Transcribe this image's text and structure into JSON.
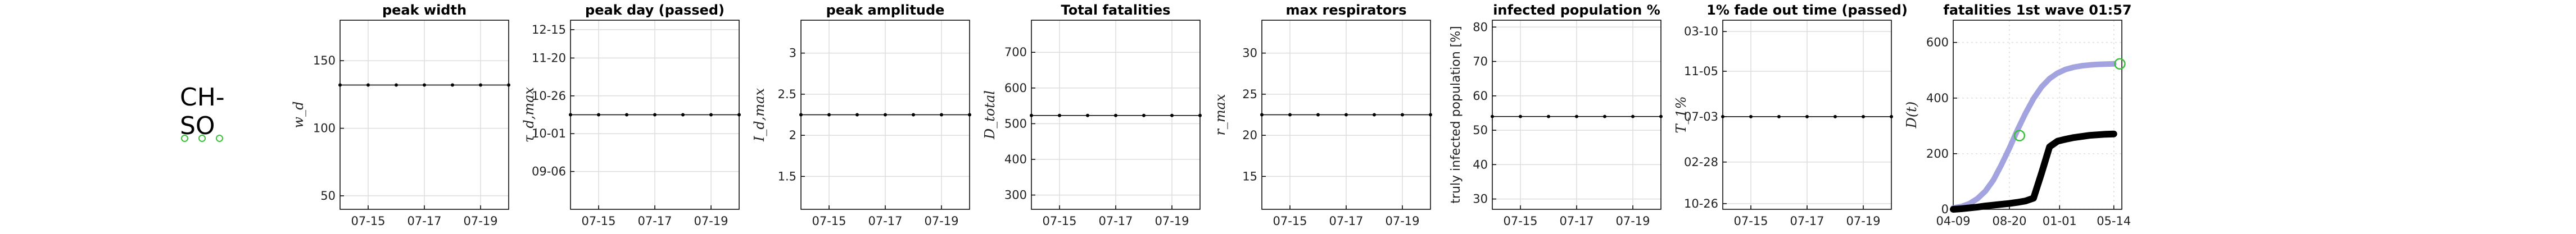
{
  "region": {
    "name": "CH-SO",
    "markers": [
      "marker-1",
      "marker-2",
      "marker-3"
    ],
    "marker_color": "#3cc03c"
  },
  "chart_data": [
    {
      "type": "line",
      "title": "peak width",
      "ylabel": "w_d",
      "x": [
        "07-14",
        "07-15",
        "07-16",
        "07-17",
        "07-18",
        "07-19",
        "07-20"
      ],
      "xticks": [
        "07-15",
        "07-17",
        "07-19"
      ],
      "ylim": [
        40,
        180
      ],
      "yticks": [
        50,
        100,
        150
      ],
      "series": [
        {
          "values": [
            132,
            132,
            132,
            132,
            132,
            132,
            132
          ]
        }
      ]
    },
    {
      "type": "line",
      "title": "peak day (passed)",
      "ylabel": "τ_d,max",
      "x": [
        "07-14",
        "07-15",
        "07-16",
        "07-17",
        "07-18",
        "07-19",
        "07-20"
      ],
      "xticks": [
        "07-15",
        "07-17",
        "07-19"
      ],
      "ylim": [
        0,
        100
      ],
      "yticks": [
        20,
        40,
        60,
        80,
        95
      ],
      "ytick_labels": [
        "09-06",
        "10-01",
        "10-26",
        "11-20",
        "12-15"
      ],
      "series": [
        {
          "values": [
            50,
            50,
            50,
            50,
            50,
            50,
            50
          ]
        }
      ]
    },
    {
      "type": "line",
      "title": "peak amplitude",
      "ylabel": "I_d,max",
      "x": [
        "07-14",
        "07-15",
        "07-16",
        "07-17",
        "07-18",
        "07-19",
        "07-20"
      ],
      "xticks": [
        "07-15",
        "07-17",
        "07-19"
      ],
      "ylim": [
        1.1,
        3.4
      ],
      "yticks": [
        1.5,
        2,
        2.5,
        3
      ],
      "series": [
        {
          "values": [
            2.25,
            2.25,
            2.25,
            2.25,
            2.25,
            2.25,
            2.25
          ]
        }
      ]
    },
    {
      "type": "line",
      "title": "Total fatalities",
      "ylabel": "D_total",
      "x": [
        "07-14",
        "07-15",
        "07-16",
        "07-17",
        "07-18",
        "07-19",
        "07-20"
      ],
      "xticks": [
        "07-15",
        "07-17",
        "07-19"
      ],
      "ylim": [
        260,
        790
      ],
      "yticks": [
        300,
        400,
        500,
        600,
        700
      ],
      "series": [
        {
          "values": [
            523,
            523,
            523,
            523,
            523,
            523,
            523
          ]
        }
      ]
    },
    {
      "type": "line",
      "title": "max respirators",
      "ylabel": "r_max",
      "x": [
        "07-14",
        "07-15",
        "07-16",
        "07-17",
        "07-18",
        "07-19",
        "07-20"
      ],
      "xticks": [
        "07-15",
        "07-17",
        "07-19"
      ],
      "ylim": [
        11,
        34
      ],
      "yticks": [
        15,
        20,
        25,
        30
      ],
      "series": [
        {
          "values": [
            22.5,
            22.5,
            22.5,
            22.5,
            22.5,
            22.5,
            22.5
          ]
        }
      ]
    },
    {
      "type": "line",
      "title": "infected population %",
      "ylabel": "truly infected population [%]",
      "x": [
        "07-14",
        "07-15",
        "07-16",
        "07-17",
        "07-18",
        "07-19",
        "07-20"
      ],
      "xticks": [
        "07-15",
        "07-17",
        "07-19"
      ],
      "ylim": [
        27,
        82
      ],
      "yticks": [
        30,
        40,
        50,
        60,
        70,
        80
      ],
      "series": [
        {
          "values": [
            54,
            54,
            54,
            54,
            54,
            54,
            54
          ]
        }
      ]
    },
    {
      "type": "line",
      "title": "1% fade out time (passed)",
      "ylabel": "T_1%",
      "x": [
        "07-14",
        "07-15",
        "07-16",
        "07-17",
        "07-18",
        "07-19",
        "07-20"
      ],
      "xticks": [
        "07-15",
        "07-17",
        "07-19"
      ],
      "ylim": [
        0,
        100
      ],
      "yticks": [
        3,
        25,
        49,
        73,
        94
      ],
      "ytick_labels": [
        "10-26",
        "02-28",
        "07-03",
        "11-05",
        "03-10"
      ],
      "series": [
        {
          "values": [
            49,
            49,
            49,
            49,
            49,
            49,
            49
          ]
        }
      ]
    },
    {
      "type": "line",
      "title": "fatalities 1st wave 01:57",
      "ylabel": "D(t)",
      "x": [
        0,
        20,
        40,
        60,
        80,
        100,
        120,
        140,
        160,
        180,
        200,
        220,
        240,
        260,
        280,
        300,
        320,
        340,
        360,
        380,
        400
      ],
      "xticks": [
        0,
        140,
        265,
        400
      ],
      "xtick_labels": [
        "04-09",
        "08-20",
        "01-01",
        "05-14"
      ],
      "xlim": [
        0,
        420
      ],
      "ylim": [
        0,
        680
      ],
      "yticks": [
        0,
        200,
        400,
        600
      ],
      "series": [
        {
          "style": "fit",
          "color": "#9999dd",
          "values": [
            5,
            10,
            20,
            38,
            65,
            105,
            160,
            220,
            285,
            345,
            398,
            440,
            470,
            490,
            503,
            511,
            516,
            519,
            521,
            522,
            523
          ]
        },
        {
          "style": "observed",
          "color": "#000000",
          "values": [
            0,
            2,
            5,
            8,
            12,
            15,
            18,
            21,
            25,
            30,
            40,
            130,
            225,
            245,
            252,
            258,
            262,
            266,
            268,
            270,
            271
          ]
        }
      ],
      "highlight_points": [
        {
          "x": 165,
          "y": 265
        },
        {
          "x": 415,
          "y": 523
        }
      ],
      "highlight_color": "#3cc03c"
    }
  ]
}
